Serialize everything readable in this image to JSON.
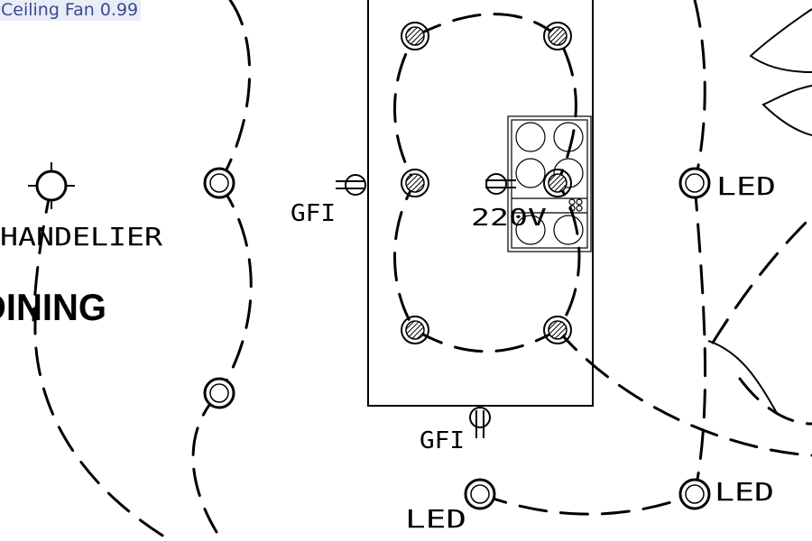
{
  "detection": {
    "label": "Ceiling Fan 0.99"
  },
  "annotations": {
    "chandelier": "CHANDELIER",
    "room": "DINING",
    "gfi_left": "GFI",
    "gfi_bottom": "GFI",
    "voltage": "220V",
    "led_right": "LED",
    "led_bottom_left": "LED",
    "led_bottom_right": "LED"
  },
  "colors": {
    "label_bg": "#e8ecf6",
    "label_text": "#3b4a8f",
    "line": "#000000"
  }
}
